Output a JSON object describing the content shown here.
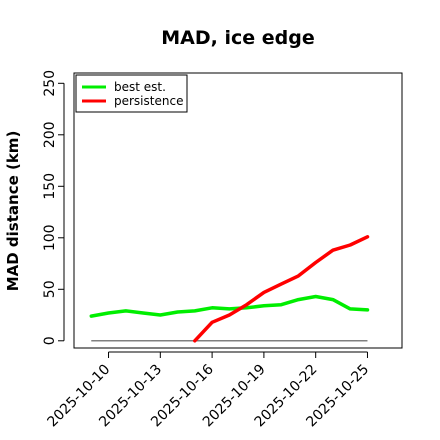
{
  "chart_data": {
    "type": "line",
    "title": "MAD, ice edge",
    "xlabel": "",
    "ylabel": "MAD distance (km)",
    "x_ticks": [
      "2025-10-10",
      "2025-10-13",
      "2025-10-16",
      "2025-10-19",
      "2025-10-22",
      "2025-10-25"
    ],
    "xlim": [
      "2025-10-08",
      "2025-10-27"
    ],
    "y_ticks": [
      0,
      50,
      100,
      150,
      200,
      250
    ],
    "ylim": [
      -7,
      260
    ],
    "grid": false,
    "legend_position": "top-left",
    "reference_line": {
      "y": 0,
      "x_start": "2025-10-09",
      "x_end": "2025-10-25",
      "color": "#808080"
    },
    "series": [
      {
        "name": "best est.",
        "color": "#00ee00",
        "x": [
          "2025-10-09",
          "2025-10-10",
          "2025-10-11",
          "2025-10-12",
          "2025-10-13",
          "2025-10-14",
          "2025-10-15",
          "2025-10-16",
          "2025-10-17",
          "2025-10-18",
          "2025-10-19",
          "2025-10-20",
          "2025-10-21",
          "2025-10-22",
          "2025-10-23",
          "2025-10-24",
          "2025-10-25"
        ],
        "y": [
          24,
          27,
          29,
          27,
          25,
          28,
          29,
          32,
          31,
          32,
          34,
          35,
          40,
          43,
          40,
          31,
          30
        ]
      },
      {
        "name": "persistence",
        "color": "#ff0000",
        "x": [
          "2025-10-15",
          "2025-10-16",
          "2025-10-17",
          "2025-10-18",
          "2025-10-19",
          "2025-10-20",
          "2025-10-21",
          "2025-10-22",
          "2025-10-23",
          "2025-10-24",
          "2025-10-25"
        ],
        "y": [
          0,
          18,
          25,
          35,
          47,
          55,
          63,
          76,
          88,
          93,
          101
        ]
      }
    ]
  }
}
